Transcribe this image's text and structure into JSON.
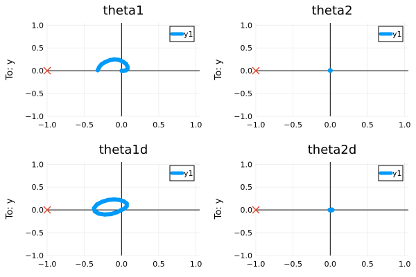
{
  "colors": {
    "series": "#009AFA",
    "marker": "#E24A33",
    "axis": "#000000",
    "grid": "#ECECEC",
    "text": "#000000",
    "legend_border": "#000000"
  },
  "chart_data": [
    {
      "type": "line",
      "title": "theta1",
      "xlabel": "",
      "ylabel": "To: y",
      "xlim": [
        -1.0,
        1.05
      ],
      "ylim": [
        -1.0,
        1.05
      ],
      "xticks": [
        -1.0,
        -0.5,
        0.0,
        0.5,
        1.0
      ],
      "yticks": [
        -1.0,
        -0.5,
        0.0,
        0.5,
        1.0
      ],
      "xtick_labels": [
        "−1.0",
        "−0.5",
        "0.0",
        "0.5",
        "1.0"
      ],
      "ytick_labels": [
        "−1.0",
        "−0.5",
        "0.0",
        "0.5",
        "1.0"
      ],
      "grid": true,
      "legend": {
        "position": "top-right",
        "entries": [
          "y1"
        ]
      },
      "series": [
        {
          "name": "y1",
          "x": [
            -0.32,
            -0.3,
            -0.27,
            -0.22,
            -0.16,
            -0.1,
            -0.04,
            0.02,
            0.06,
            0.08,
            0.08,
            0.06,
            0.03,
            0.01,
            0.0
          ],
          "y": [
            0.01,
            0.08,
            0.14,
            0.19,
            0.23,
            0.25,
            0.24,
            0.2,
            0.15,
            0.09,
            0.04,
            0.01,
            0.0,
            0.0,
            0.0
          ]
        }
      ],
      "x_markers": {
        "x": [
          -1.0
        ],
        "y": [
          0.0
        ]
      }
    },
    {
      "type": "line",
      "title": "theta2",
      "xlabel": "",
      "ylabel": "To: y",
      "xlim": [
        -1.0,
        1.05
      ],
      "ylim": [
        -1.0,
        1.05
      ],
      "xticks": [
        -1.0,
        -0.5,
        0.0,
        0.5,
        1.0
      ],
      "yticks": [
        -1.0,
        -0.5,
        0.0,
        0.5,
        1.0
      ],
      "xtick_labels": [
        "−1.0",
        "−0.5",
        "0.0",
        "0.5",
        "1.0"
      ],
      "ytick_labels": [
        "−1.0",
        "−0.5",
        "0.0",
        "0.5",
        "1.0"
      ],
      "grid": true,
      "legend": {
        "position": "top-right",
        "entries": [
          "y1"
        ]
      },
      "series": [
        {
          "name": "y1",
          "x": [
            0.0,
            0.005,
            0.0,
            -0.005,
            0.0
          ],
          "y": [
            0.0,
            0.005,
            0.01,
            0.005,
            0.0
          ]
        }
      ],
      "x_markers": {
        "x": [
          -1.0
        ],
        "y": [
          0.0
        ]
      }
    },
    {
      "type": "line",
      "title": "theta1d",
      "xlabel": "",
      "ylabel": "To: y",
      "xlim": [
        -1.0,
        1.05
      ],
      "ylim": [
        -1.0,
        1.05
      ],
      "xticks": [
        -1.0,
        -0.5,
        0.0,
        0.5,
        1.0
      ],
      "yticks": [
        -1.0,
        -0.5,
        0.0,
        0.5,
        1.0
      ],
      "xtick_labels": [
        "−1.0",
        "−0.5",
        "0.0",
        "0.5",
        "1.0"
      ],
      "ytick_labels": [
        "−1.0",
        "−0.5",
        "0.0",
        "0.5",
        "1.0"
      ],
      "grid": true,
      "legend": {
        "position": "top-right",
        "entries": [
          "y1"
        ]
      },
      "series": [
        {
          "name": "y1",
          "x": [
            0.0,
            0.04,
            0.07,
            0.07,
            0.03,
            -0.03,
            -0.1,
            -0.18,
            -0.26,
            -0.33,
            -0.37,
            -0.36,
            -0.31,
            -0.23,
            -0.14,
            -0.06,
            0.0
          ],
          "y": [
            0.0,
            0.03,
            0.08,
            0.14,
            0.19,
            0.22,
            0.23,
            0.22,
            0.18,
            0.12,
            0.04,
            -0.03,
            -0.08,
            -0.1,
            -0.09,
            -0.05,
            0.0
          ]
        }
      ],
      "x_markers": {
        "x": [
          -1.0
        ],
        "y": [
          0.0
        ]
      }
    },
    {
      "type": "line",
      "title": "theta2d",
      "xlabel": "",
      "ylabel": "To: y",
      "xlim": [
        -1.0,
        1.05
      ],
      "ylim": [
        -1.0,
        1.05
      ],
      "xticks": [
        -1.0,
        -0.5,
        0.0,
        0.5,
        1.0
      ],
      "yticks": [
        -1.0,
        -0.5,
        0.0,
        0.5,
        1.0
      ],
      "xtick_labels": [
        "−1.0",
        "−0.5",
        "0.0",
        "0.5",
        "1.0"
      ],
      "ytick_labels": [
        "−1.0",
        "−0.5",
        "0.0",
        "0.5",
        "1.0"
      ],
      "grid": true,
      "legend": {
        "position": "top-right",
        "entries": [
          "y1"
        ]
      },
      "series": [
        {
          "name": "y1",
          "x": [
            0.0,
            0.02,
            0.03,
            0.02,
            0.0,
            -0.01,
            0.0
          ],
          "y": [
            0.0,
            0.01,
            0.0,
            -0.01,
            -0.01,
            0.0,
            0.0
          ]
        }
      ],
      "x_markers": {
        "x": [
          -1.0
        ],
        "y": [
          0.0
        ]
      }
    }
  ]
}
